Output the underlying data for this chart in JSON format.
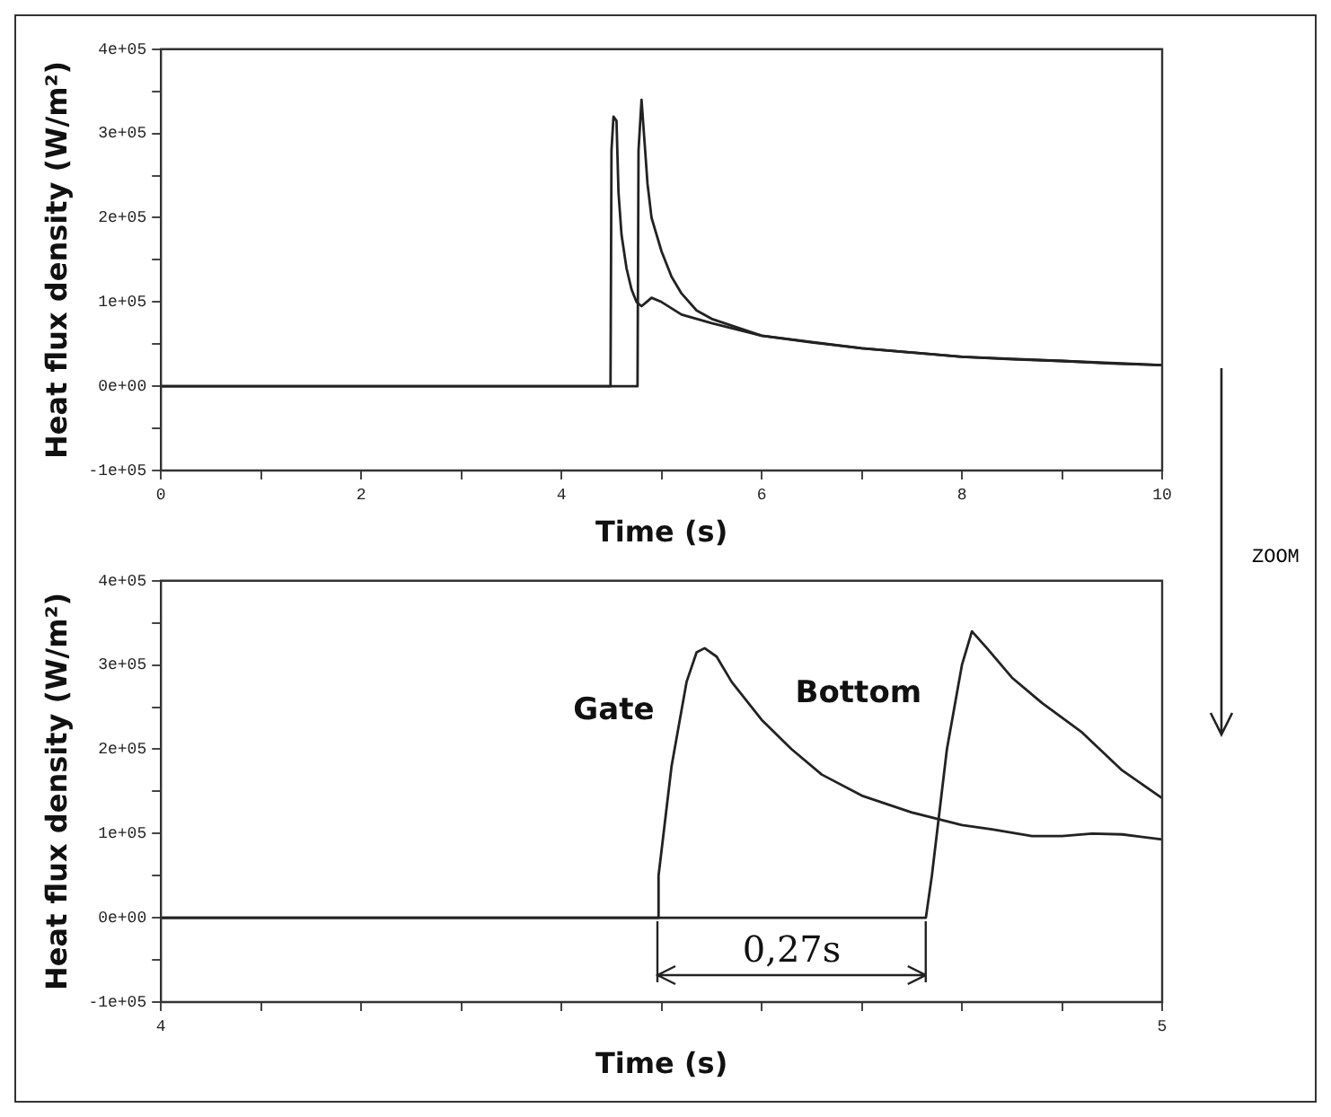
{
  "chart_data": [
    {
      "type": "line",
      "xlabel": "Time (s)",
      "ylabel": "Heat flux density (W/m²)",
      "annotations": [
        "ZOOM"
      ],
      "xlim": [
        0,
        10
      ],
      "xticks": [
        0,
        {
          "value": 1,
          "label": null
        },
        2,
        {
          "value": 3,
          "label": null
        },
        4,
        {
          "value": 5,
          "label": null
        },
        6,
        {
          "value": 7,
          "label": null
        },
        8,
        {
          "value": 9,
          "label": null
        },
        10
      ],
      "ylim": [
        -100000,
        400000
      ],
      "yticks": [
        {
          "value": -100000,
          "label": "-1e+05"
        },
        {
          "value": -50000,
          "label": null
        },
        {
          "value": 0,
          "label": "0e+00"
        },
        {
          "value": 50000,
          "label": null
        },
        {
          "value": 100000,
          "label": "1e+05"
        },
        {
          "value": 150000,
          "label": null
        },
        {
          "value": 200000,
          "label": "2e+05"
        },
        {
          "value": 250000,
          "label": null
        },
        {
          "value": 300000,
          "label": "3e+05"
        },
        {
          "value": 350000,
          "label": null
        },
        {
          "value": 400000,
          "label": "4e+05"
        }
      ],
      "grid": false,
      "legend": false,
      "marker": "none",
      "line_style": "solid",
      "series": [
        {
          "color": "#222222",
          "x": [
            0,
            1,
            2,
            3,
            4,
            4.49,
            4.5,
            4.52,
            4.55,
            4.57,
            4.6,
            4.65,
            4.7,
            4.75,
            4.8,
            4.85,
            4.9,
            5,
            5.2,
            5.5,
            6,
            6.5,
            7,
            7.5,
            8,
            8.5,
            9,
            9.5,
            10
          ],
          "values": [
            0,
            0,
            0,
            0,
            0,
            0,
            280000,
            320000,
            315000,
            230000,
            180000,
            140000,
            115000,
            100000,
            95000,
            100000,
            105000,
            100000,
            85000,
            75000,
            60000,
            52000,
            45000,
            40000,
            35000,
            32000,
            30000,
            27000,
            25000
          ]
        },
        {
          "color": "#222222",
          "x": [
            0,
            2,
            4,
            4.76,
            4.77,
            4.8,
            4.83,
            4.86,
            4.9,
            5,
            5.1,
            5.2,
            5.35,
            5.5,
            6,
            7,
            8,
            9,
            10
          ],
          "values": [
            0,
            0,
            0,
            0,
            280000,
            340000,
            290000,
            240000,
            200000,
            160000,
            130000,
            110000,
            90000,
            80000,
            60000,
            45000,
            35000,
            30000,
            25000
          ]
        }
      ]
    },
    {
      "type": "line",
      "xlabel": "Time (s)",
      "ylabel": "Heat flux density (W/m²)",
      "annotations": [
        "0,27s"
      ],
      "xlim": [
        4,
        5
      ],
      "xticks": [
        4,
        {
          "value": 4.1,
          "label": null
        },
        {
          "value": 4.2,
          "label": null
        },
        {
          "value": 4.3,
          "label": null
        },
        {
          "value": 4.4,
          "label": null
        },
        {
          "value": 4.5,
          "label": null
        },
        {
          "value": 4.6,
          "label": null
        },
        {
          "value": 4.7,
          "label": null
        },
        {
          "value": 4.8,
          "label": null
        },
        {
          "value": 4.9,
          "label": null
        },
        5
      ],
      "ylim": [
        -100000,
        400000
      ],
      "yticks": [
        {
          "value": -100000,
          "label": "-1e+05"
        },
        {
          "value": -50000,
          "label": null
        },
        {
          "value": 0,
          "label": "0e+00"
        },
        {
          "value": 50000,
          "label": null
        },
        {
          "value": 100000,
          "label": "1e+05"
        },
        {
          "value": 150000,
          "label": null
        },
        {
          "value": 200000,
          "label": "2e+05"
        },
        {
          "value": 250000,
          "label": null
        },
        {
          "value": 300000,
          "label": "3e+05"
        },
        {
          "value": 350000,
          "label": null
        },
        {
          "value": 400000,
          "label": "4e+05"
        }
      ],
      "grid": false,
      "legend": false,
      "marker": "none",
      "line_style": "solid",
      "series": [
        {
          "name": "Gate",
          "color": "#222222",
          "x": [
            4,
            4.2,
            4.4,
            4.496,
            4.497,
            4.51,
            4.525,
            4.535,
            4.543,
            4.555,
            4.57,
            4.6,
            4.63,
            4.66,
            4.7,
            4.75,
            4.8,
            4.83,
            4.87,
            4.9,
            4.93,
            4.96,
            5
          ],
          "values": [
            0,
            0,
            0,
            0,
            50000,
            180000,
            280000,
            315000,
            320000,
            310000,
            280000,
            235000,
            200000,
            170000,
            145000,
            125000,
            110000,
            105000,
            97000,
            97000,
            100000,
            99000,
            93000
          ]
        },
        {
          "name": "Bottom",
          "color": "#222222",
          "x": [
            4,
            4.2,
            4.4,
            4.6,
            4.764,
            4.77,
            4.785,
            4.8,
            4.81,
            4.825,
            4.85,
            4.88,
            4.92,
            4.96,
            5
          ],
          "values": [
            0,
            0,
            0,
            0,
            0,
            50000,
            200000,
            300000,
            340000,
            320000,
            285000,
            255000,
            220000,
            175000,
            142000
          ]
        }
      ]
    }
  ]
}
